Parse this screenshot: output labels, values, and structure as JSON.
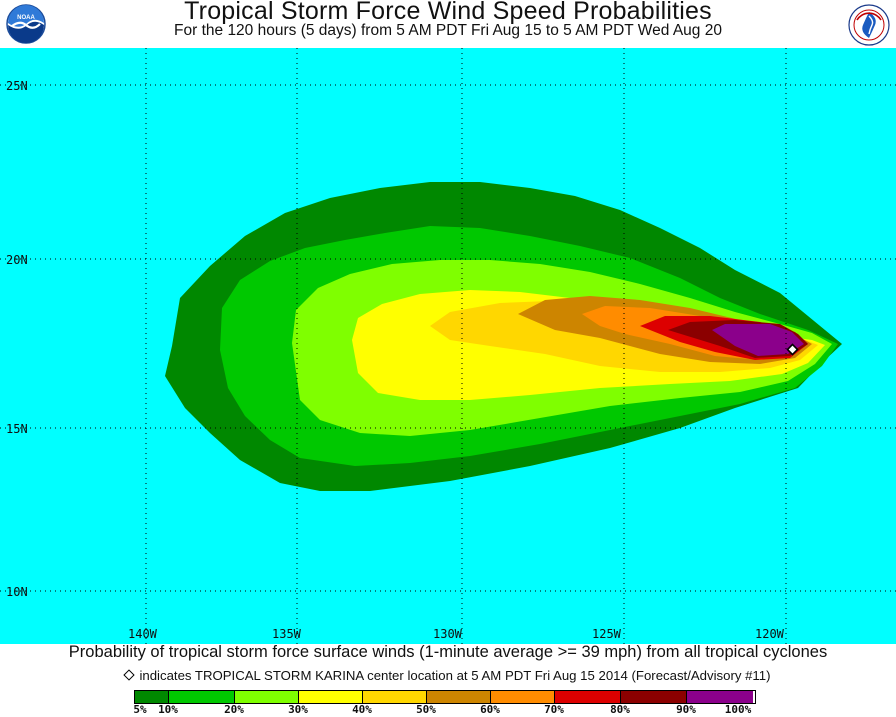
{
  "header": {
    "title": "Tropical Storm Force Wind Speed Probabilities",
    "subtitle": "For the 120 hours (5 days) from 5 AM PDT Fri Aug 15 to 5 AM PDT Wed Aug 20",
    "logo_left_icon": "noaa-logo-icon",
    "logo_right_icon": "national-weather-service-logo-icon"
  },
  "map": {
    "ocean_color": "#00ffff",
    "lat_labels": [
      "25N",
      "20N",
      "15N",
      "10N"
    ],
    "lon_labels": [
      "140W",
      "135W",
      "130W",
      "125W",
      "120W"
    ],
    "storm_center_icon": "diamond-marker-icon"
  },
  "footer": {
    "caption": "Probability of tropical storm force surface winds (1-minute average >= 39 mph) from all tropical cyclones",
    "advisory": "indicates TROPICAL STORM KARINA center location at 5 AM PDT Fri Aug 15 2014 (Forecast/Advisory #11)"
  },
  "legend": {
    "labels": [
      "5%",
      "10%",
      "20%",
      "30%",
      "40%",
      "50%",
      "60%",
      "70%",
      "80%",
      "90%",
      "100%"
    ],
    "colors": [
      "#008800",
      "#00c800",
      "#7fff00",
      "#ffff00",
      "#ffd700",
      "#cd8500",
      "#ff8c00",
      "#dd0000",
      "#8b0000",
      "#8b008b"
    ]
  }
}
